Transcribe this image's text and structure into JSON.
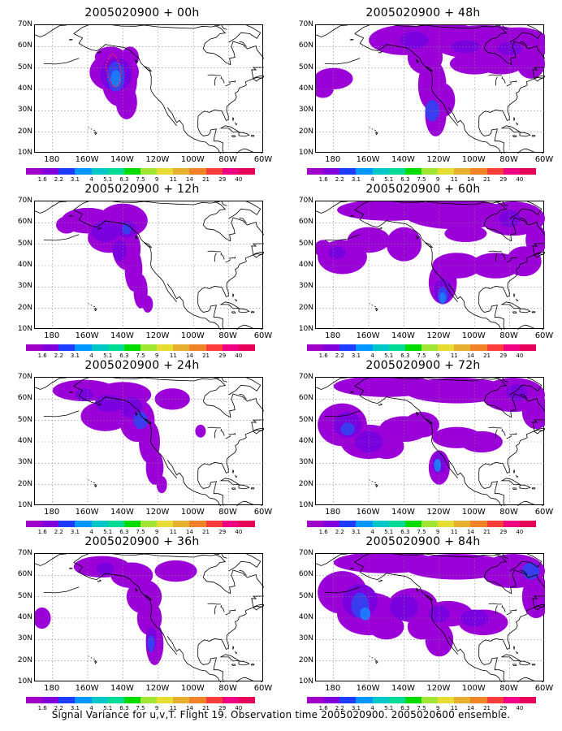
{
  "panels": [
    {
      "title": "2005020900 + 00h"
    },
    {
      "title": "2005020900 + 48h"
    },
    {
      "title": "2005020900 + 12h"
    },
    {
      "title": "2005020900 + 60h"
    },
    {
      "title": "2005020900 + 24h"
    },
    {
      "title": "2005020900 + 72h"
    },
    {
      "title": "2005020900 + 36h"
    },
    {
      "title": "2005020900 + 84h"
    }
  ],
  "lat_labels": [
    "70N",
    "60N",
    "50N",
    "40N",
    "30N",
    "20N",
    "10N"
  ],
  "lon_labels": [
    "180",
    "160W",
    "140W",
    "120W",
    "100W",
    "80W",
    "60W"
  ],
  "colorbar": {
    "labels": [
      "1.6",
      "2.2",
      "3.1",
      "4",
      "5.1",
      "6.3",
      "7.5",
      "9",
      "11",
      "14",
      "21",
      "29",
      "40"
    ],
    "colors": [
      "#a000c8",
      "#8200dc",
      "#1e3cff",
      "#0096ff",
      "#00c8c8",
      "#00dc96",
      "#00dc00",
      "#a0e632",
      "#e6dc32",
      "#e6af2d",
      "#f08228",
      "#fa3c3c",
      "#f00082",
      "#e6005a"
    ]
  },
  "caption": "Signal Variance for u,v,T. Flight 19. Observation time 2005020900. 2005020600 ensemble."
}
